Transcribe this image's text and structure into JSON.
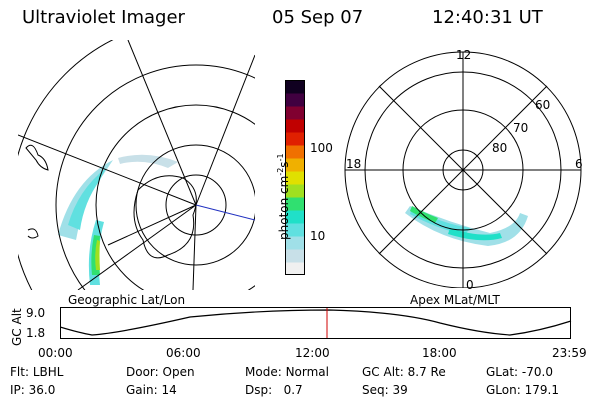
{
  "header": {
    "instrument": "Ultraviolet Imager",
    "date": "05 Sep 07",
    "time": "12:40:31 UT"
  },
  "left_panel": {
    "label": "Geographic Lat/Lon"
  },
  "right_panel": {
    "label": "Apex MLat/MLT",
    "mlt_labels": [
      "12",
      "18",
      "6",
      "0"
    ],
    "lat_labels": [
      "60",
      "70",
      "80"
    ]
  },
  "colorbar": {
    "unit_label": "photon cm",
    "unit_sup1": "-2",
    "unit_s": "s",
    "unit_sup2": "-1",
    "ticks": [
      "100",
      "10"
    ],
    "colors": [
      "#f0f0f0",
      "#c8e0e8",
      "#a0e0e8",
      "#60e0e0",
      "#20e0c8",
      "#30e070",
      "#a0e020",
      "#e0e000",
      "#f0b000",
      "#f07000",
      "#e02000",
      "#c00000",
      "#800030",
      "#400040",
      "#100020"
    ]
  },
  "altitude_plot": {
    "ylabel": "GC Alt",
    "yticks": [
      "9.0",
      "1.8"
    ],
    "xticks": [
      "00:00",
      "06:00",
      "12:00",
      "18:00",
      "23:59"
    ]
  },
  "status": {
    "row1": [
      {
        "label": "Flt:",
        "value": "LBHL"
      },
      {
        "label": "Door:",
        "value": "Open"
      },
      {
        "label": "Mode:",
        "value": "Normal"
      },
      {
        "label": "GC Alt:",
        "value": "8.7 Re"
      },
      {
        "label": "GLat:",
        "value": "-70.0"
      }
    ],
    "row2": [
      {
        "label": "IP:",
        "value": "36.0"
      },
      {
        "label": "Gain:",
        "value": "14"
      },
      {
        "label": "Dsp:",
        "value": "0.7"
      },
      {
        "label": "Seq:",
        "value": "39"
      },
      {
        "label": "GLon:",
        "value": "179.1"
      }
    ]
  }
}
